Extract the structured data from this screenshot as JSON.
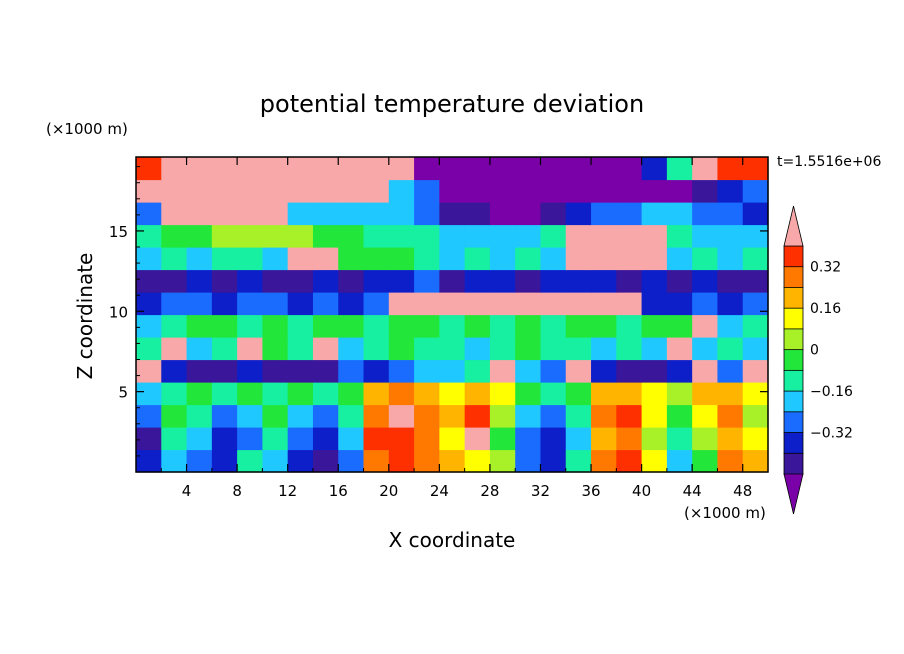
{
  "chart_data": {
    "type": "heatmap",
    "title": "potential temperature deviation",
    "xlabel": "X coordinate",
    "ylabel": "Z coordinate",
    "x_unit": "(×1000 m)",
    "y_unit": "(×1000 m)",
    "time_label": "t=1.5516e+06",
    "xlim": [
      0,
      50
    ],
    "ylim": [
      0,
      19.6
    ],
    "x_ticks": [
      "4",
      "8",
      "12",
      "16",
      "20",
      "24",
      "28",
      "32",
      "36",
      "40",
      "44",
      "48"
    ],
    "y_ticks": [
      "5",
      "10",
      "15"
    ],
    "colorbar": {
      "tick_labels": [
        "0.32",
        "0.16",
        "0",
        "−0.16",
        "−0.32"
      ],
      "colors": [
        "#7a00a8",
        "#3a169a",
        "#0d1fc8",
        "#1a6cff",
        "#1fc8ff",
        "#16f0a0",
        "#22e63a",
        "#a8f028",
        "#ffff00",
        "#ffb400",
        "#ff7800",
        "#ff3000",
        "#f8a8a8"
      ]
    },
    "field_grid": {
      "nx": 25,
      "nz": 14,
      "x_range": [
        0,
        50
      ],
      "z_range": [
        0,
        19.6
      ],
      "levels_bottom_to_top": [
        [
          2,
          4,
          3,
          2,
          5,
          4,
          2,
          1,
          3,
          10,
          11,
          10,
          9,
          8,
          7,
          3,
          2,
          5,
          10,
          11,
          8,
          4,
          6,
          10,
          9
        ],
        [
          1,
          5,
          4,
          2,
          3,
          5,
          3,
          2,
          4,
          11,
          11,
          10,
          8,
          12,
          6,
          3,
          2,
          4,
          9,
          10,
          7,
          5,
          7,
          9,
          8
        ],
        [
          3,
          6,
          5,
          3,
          4,
          6,
          4,
          3,
          5,
          10,
          12,
          10,
          9,
          11,
          7,
          4,
          3,
          5,
          10,
          11,
          8,
          6,
          8,
          10,
          7
        ],
        [
          4,
          5,
          6,
          5,
          6,
          5,
          6,
          5,
          6,
          9,
          10,
          9,
          8,
          9,
          8,
          6,
          5,
          6,
          9,
          9,
          8,
          7,
          9,
          9,
          8
        ],
        [
          12,
          2,
          1,
          1,
          2,
          1,
          1,
          1,
          3,
          2,
          3,
          4,
          4,
          5,
          12,
          4,
          3,
          12,
          2,
          1,
          1,
          2,
          12,
          3,
          12
        ],
        [
          5,
          12,
          4,
          5,
          12,
          6,
          5,
          12,
          4,
          5,
          6,
          5,
          5,
          4,
          5,
          6,
          5,
          5,
          4,
          5,
          4,
          12,
          4,
          5,
          4
        ],
        [
          4,
          5,
          6,
          6,
          5,
          6,
          5,
          6,
          6,
          5,
          6,
          6,
          5,
          6,
          5,
          6,
          5,
          6,
          6,
          5,
          6,
          6,
          12,
          4,
          5
        ],
        [
          2,
          3,
          3,
          2,
          3,
          3,
          2,
          3,
          2,
          3,
          12,
          12,
          12,
          12,
          12,
          12,
          12,
          12,
          12,
          12,
          2,
          2,
          3,
          2,
          3
        ],
        [
          1,
          1,
          2,
          1,
          2,
          1,
          1,
          2,
          1,
          2,
          2,
          3,
          1,
          2,
          2,
          1,
          2,
          2,
          2,
          1,
          2,
          1,
          2,
          1,
          1
        ],
        [
          4,
          5,
          4,
          5,
          5,
          4,
          12,
          12,
          6,
          6,
          6,
          5,
          4,
          5,
          4,
          5,
          4,
          12,
          12,
          12,
          12,
          4,
          5,
          4,
          5
        ],
        [
          5,
          6,
          6,
          7,
          7,
          7,
          7,
          6,
          6,
          5,
          5,
          5,
          4,
          4,
          4,
          4,
          5,
          12,
          12,
          12,
          12,
          5,
          4,
          4,
          4
        ],
        [
          3,
          12,
          12,
          12,
          12,
          12,
          4,
          4,
          4,
          4,
          4,
          3,
          1,
          1,
          0,
          0,
          1,
          2,
          3,
          3,
          4,
          4,
          3,
          3,
          2
        ],
        [
          12,
          12,
          12,
          12,
          12,
          12,
          12,
          12,
          12,
          12,
          4,
          3,
          0,
          0,
          0,
          0,
          0,
          0,
          0,
          0,
          0,
          0,
          1,
          2,
          3
        ],
        [
          11,
          12,
          12,
          12,
          12,
          12,
          12,
          12,
          12,
          12,
          12,
          0,
          0,
          0,
          0,
          0,
          0,
          0,
          0,
          0,
          2,
          5,
          12,
          11,
          11
        ]
      ]
    }
  }
}
